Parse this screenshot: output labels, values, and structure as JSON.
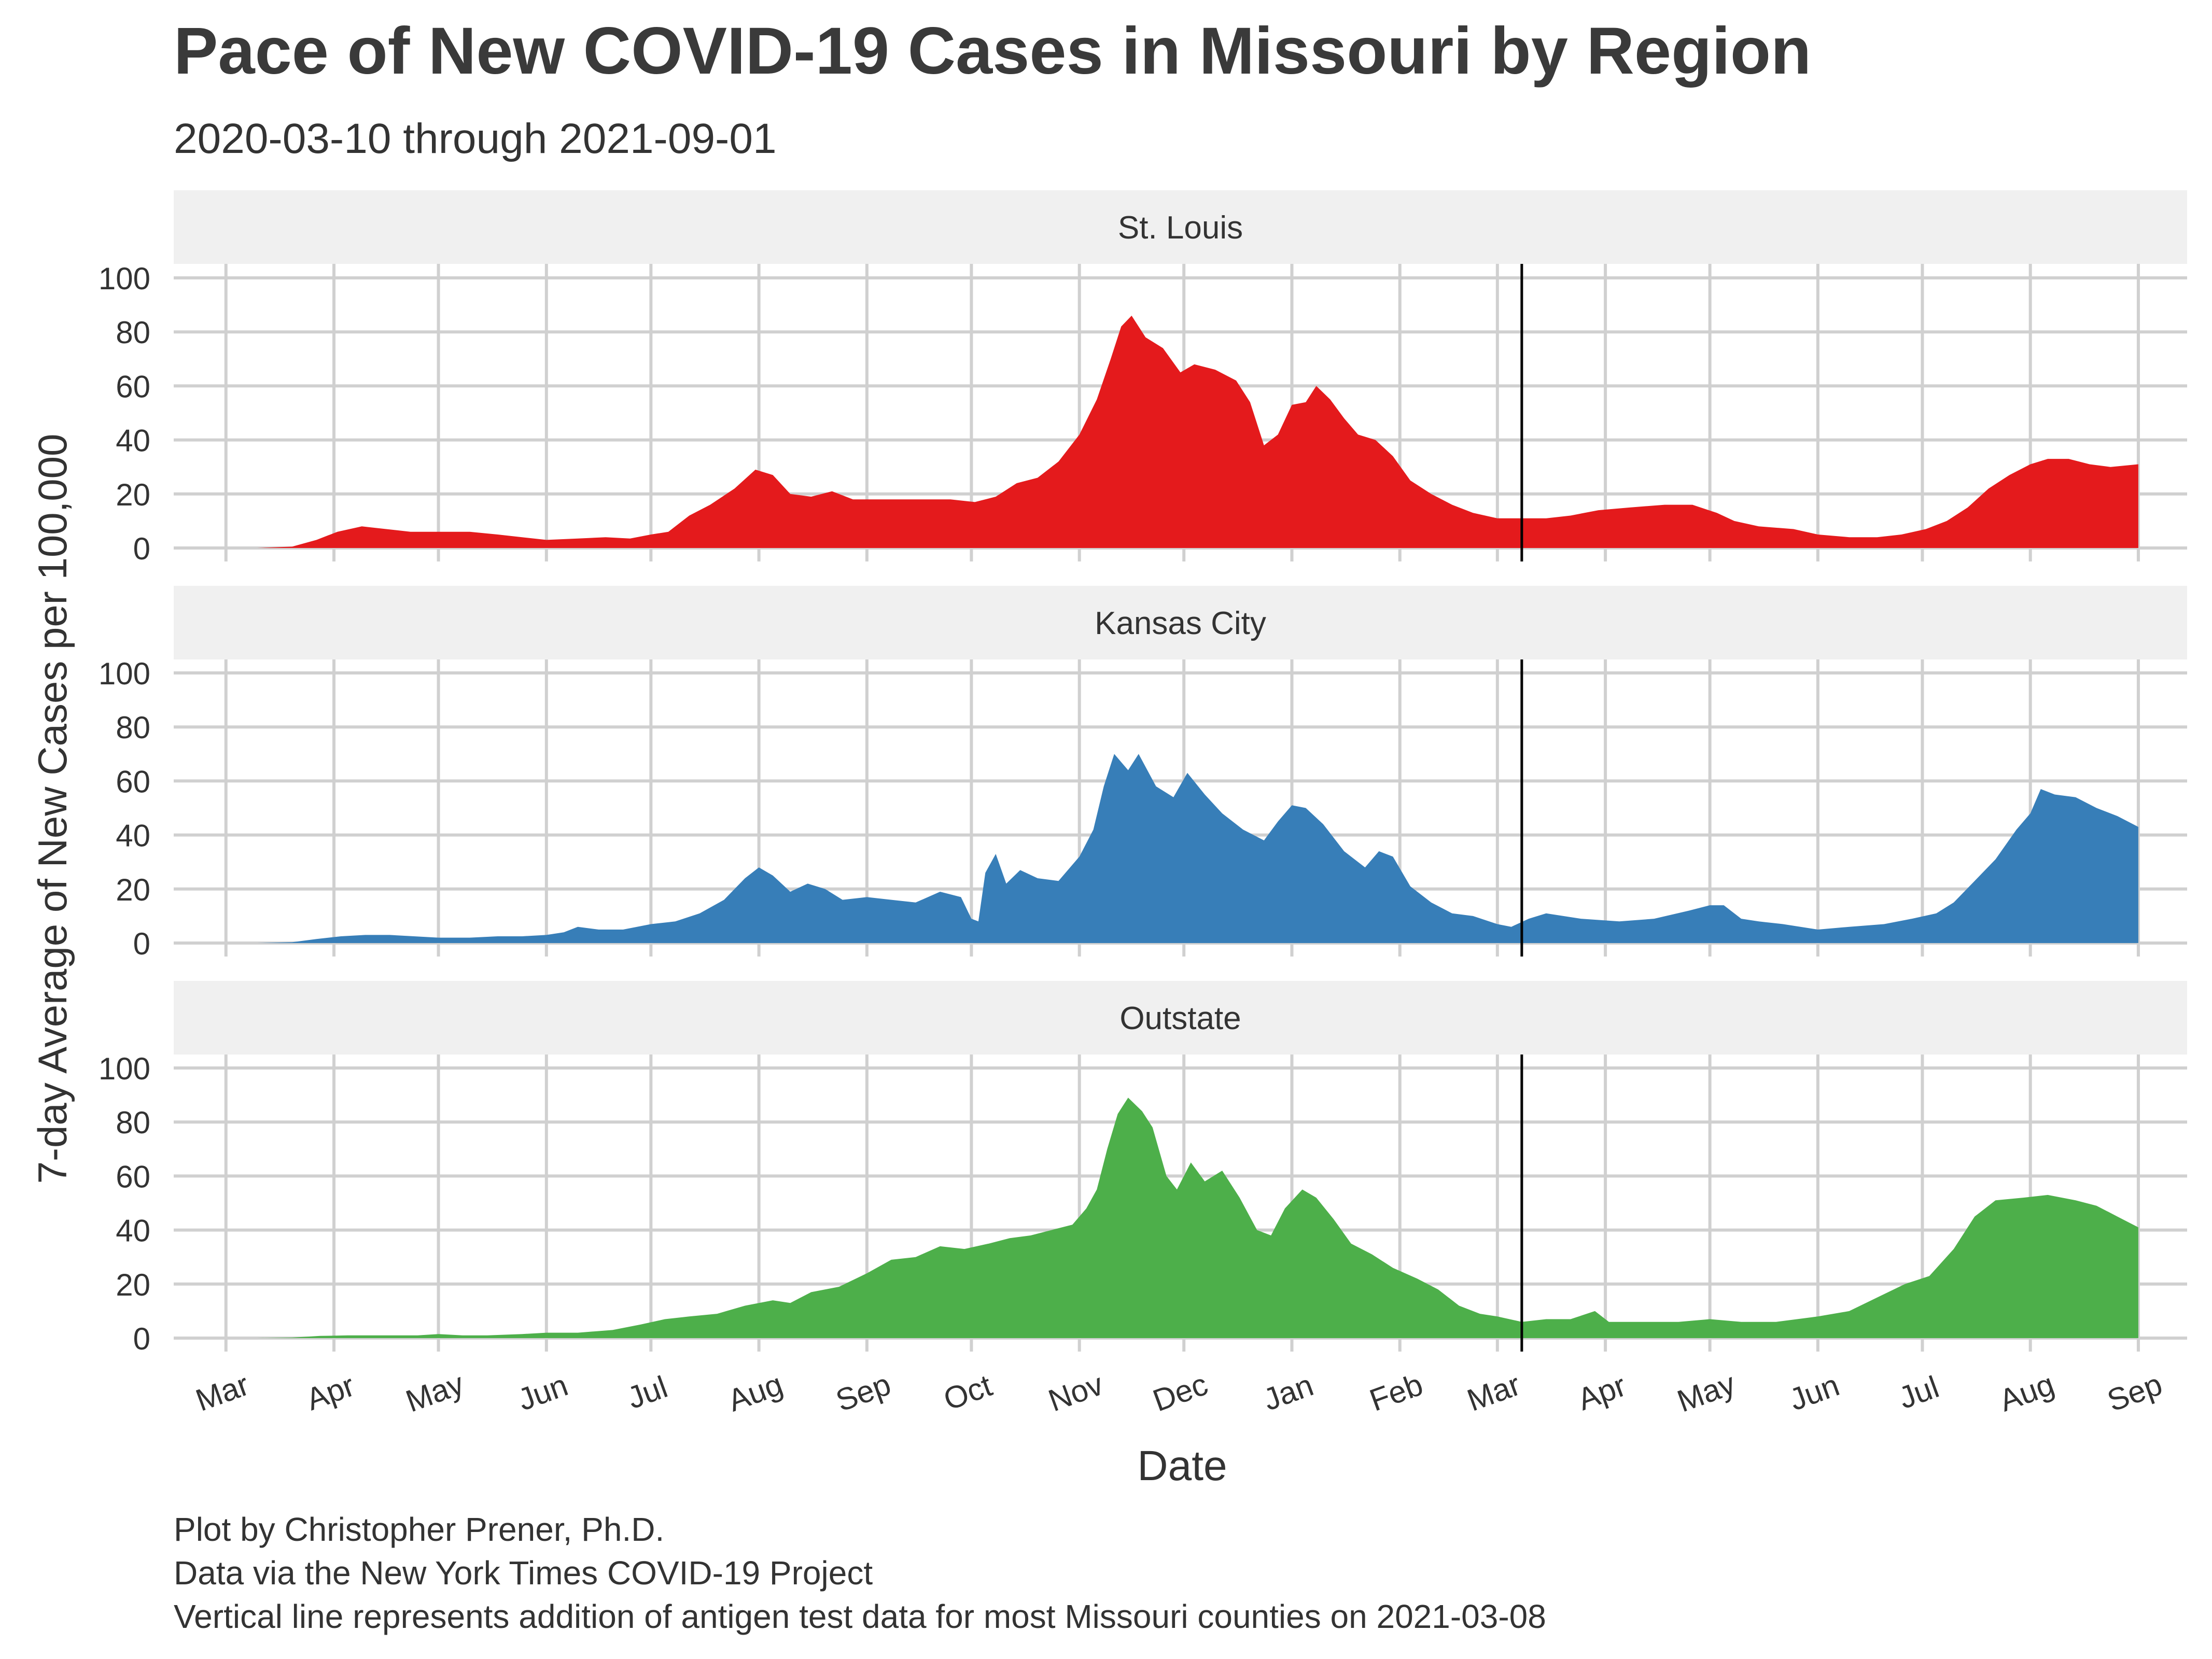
{
  "title": "Pace of New COVID-19 Cases in Missouri by Region",
  "subtitle": "2020-03-10 through 2021-09-01",
  "xlabel": "Date",
  "ylabel": "7-day Average of New Cases per 100,000",
  "caption": [
    "Plot by Christopher Prener, Ph.D.",
    "Data via the New York Times COVID-19 Project",
    "Vertical line represents addition of antigen test data for most Missouri counties on 2021-03-08"
  ],
  "chart_data": {
    "type": "area",
    "facets": [
      "St. Louis",
      "Kansas City",
      "Outstate"
    ],
    "x_range": [
      "2020-02-15",
      "2021-09-15"
    ],
    "y_range": [
      0,
      100
    ],
    "y_ticks": [
      0,
      20,
      40,
      60,
      80,
      100
    ],
    "x_ticks": [
      {
        "date": "2020-03-01",
        "label": "Mar"
      },
      {
        "date": "2020-04-01",
        "label": "Apr"
      },
      {
        "date": "2020-05-01",
        "label": "May"
      },
      {
        "date": "2020-06-01",
        "label": "Jun"
      },
      {
        "date": "2020-07-01",
        "label": "Jul"
      },
      {
        "date": "2020-08-01",
        "label": "Aug"
      },
      {
        "date": "2020-09-01",
        "label": "Sep"
      },
      {
        "date": "2020-10-01",
        "label": "Oct"
      },
      {
        "date": "2020-11-01",
        "label": "Nov"
      },
      {
        "date": "2020-12-01",
        "label": "Dec"
      },
      {
        "date": "2021-01-01",
        "label": "Jan"
      },
      {
        "date": "2021-02-01",
        "label": "Feb"
      },
      {
        "date": "2021-03-01",
        "label": "Mar"
      },
      {
        "date": "2021-04-01",
        "label": "Apr"
      },
      {
        "date": "2021-05-01",
        "label": "May"
      },
      {
        "date": "2021-06-01",
        "label": "Jun"
      },
      {
        "date": "2021-07-01",
        "label": "Jul"
      },
      {
        "date": "2021-08-01",
        "label": "Aug"
      },
      {
        "date": "2021-09-01",
        "label": "Sep"
      }
    ],
    "reference_line": "2021-03-08",
    "series": [
      {
        "name": "St. Louis",
        "color": "#e41a1c",
        "points": [
          [
            "2020-03-10",
            0
          ],
          [
            "2020-03-20",
            0.5
          ],
          [
            "2020-03-27",
            3
          ],
          [
            "2020-04-02",
            6
          ],
          [
            "2020-04-09",
            8
          ],
          [
            "2020-04-16",
            7
          ],
          [
            "2020-04-23",
            6
          ],
          [
            "2020-05-01",
            6
          ],
          [
            "2020-05-10",
            6
          ],
          [
            "2020-05-18",
            5
          ],
          [
            "2020-05-25",
            4
          ],
          [
            "2020-06-01",
            3
          ],
          [
            "2020-06-10",
            3.5
          ],
          [
            "2020-06-18",
            4
          ],
          [
            "2020-06-25",
            3.5
          ],
          [
            "2020-07-01",
            5
          ],
          [
            "2020-07-06",
            6
          ],
          [
            "2020-07-12",
            12
          ],
          [
            "2020-07-18",
            16
          ],
          [
            "2020-07-25",
            22
          ],
          [
            "2020-07-31",
            29
          ],
          [
            "2020-08-05",
            27
          ],
          [
            "2020-08-10",
            20
          ],
          [
            "2020-08-16",
            19
          ],
          [
            "2020-08-22",
            21
          ],
          [
            "2020-08-28",
            18
          ],
          [
            "2020-09-03",
            18
          ],
          [
            "2020-09-10",
            18
          ],
          [
            "2020-09-18",
            18
          ],
          [
            "2020-09-25",
            18
          ],
          [
            "2020-10-02",
            17
          ],
          [
            "2020-10-08",
            19
          ],
          [
            "2020-10-14",
            24
          ],
          [
            "2020-10-20",
            26
          ],
          [
            "2020-10-26",
            32
          ],
          [
            "2020-11-01",
            42
          ],
          [
            "2020-11-06",
            55
          ],
          [
            "2020-11-10",
            70
          ],
          [
            "2020-11-13",
            82
          ],
          [
            "2020-11-16",
            86
          ],
          [
            "2020-11-20",
            78
          ],
          [
            "2020-11-25",
            74
          ],
          [
            "2020-11-30",
            65
          ],
          [
            "2020-12-04",
            68
          ],
          [
            "2020-12-10",
            66
          ],
          [
            "2020-12-16",
            62
          ],
          [
            "2020-12-20",
            54
          ],
          [
            "2020-12-24",
            38
          ],
          [
            "2020-12-28",
            42
          ],
          [
            "2021-01-01",
            53
          ],
          [
            "2021-01-05",
            54
          ],
          [
            "2021-01-08",
            60
          ],
          [
            "2021-01-12",
            55
          ],
          [
            "2021-01-16",
            48
          ],
          [
            "2021-01-20",
            42
          ],
          [
            "2021-01-25",
            40
          ],
          [
            "2021-01-30",
            34
          ],
          [
            "2021-02-04",
            25
          ],
          [
            "2021-02-10",
            20
          ],
          [
            "2021-02-16",
            16
          ],
          [
            "2021-02-22",
            13
          ],
          [
            "2021-03-01",
            11
          ],
          [
            "2021-03-08",
            11
          ],
          [
            "2021-03-15",
            11
          ],
          [
            "2021-03-22",
            12
          ],
          [
            "2021-03-30",
            14
          ],
          [
            "2021-04-08",
            15
          ],
          [
            "2021-04-18",
            16
          ],
          [
            "2021-04-26",
            16
          ],
          [
            "2021-05-03",
            13
          ],
          [
            "2021-05-08",
            10
          ],
          [
            "2021-05-15",
            8
          ],
          [
            "2021-05-25",
            7
          ],
          [
            "2021-06-01",
            5
          ],
          [
            "2021-06-10",
            4
          ],
          [
            "2021-06-18",
            4
          ],
          [
            "2021-06-25",
            5
          ],
          [
            "2021-07-02",
            7
          ],
          [
            "2021-07-08",
            10
          ],
          [
            "2021-07-14",
            15
          ],
          [
            "2021-07-20",
            22
          ],
          [
            "2021-07-26",
            27
          ],
          [
            "2021-08-01",
            31
          ],
          [
            "2021-08-06",
            33
          ],
          [
            "2021-08-12",
            33
          ],
          [
            "2021-08-18",
            31
          ],
          [
            "2021-08-24",
            30
          ],
          [
            "2021-09-01",
            31
          ]
        ]
      },
      {
        "name": "Kansas City",
        "color": "#377eb8",
        "points": [
          [
            "2020-03-10",
            0
          ],
          [
            "2020-03-20",
            0.3
          ],
          [
            "2020-03-27",
            1.5
          ],
          [
            "2020-04-03",
            2.5
          ],
          [
            "2020-04-10",
            3
          ],
          [
            "2020-04-17",
            3
          ],
          [
            "2020-04-24",
            2.5
          ],
          [
            "2020-05-01",
            2
          ],
          [
            "2020-05-10",
            2
          ],
          [
            "2020-05-18",
            2.5
          ],
          [
            "2020-05-25",
            2.5
          ],
          [
            "2020-06-01",
            3
          ],
          [
            "2020-06-06",
            4
          ],
          [
            "2020-06-10",
            6
          ],
          [
            "2020-06-16",
            5
          ],
          [
            "2020-06-23",
            5
          ],
          [
            "2020-07-01",
            7
          ],
          [
            "2020-07-08",
            8
          ],
          [
            "2020-07-15",
            11
          ],
          [
            "2020-07-22",
            16
          ],
          [
            "2020-07-28",
            24
          ],
          [
            "2020-08-01",
            28
          ],
          [
            "2020-08-05",
            25
          ],
          [
            "2020-08-10",
            19
          ],
          [
            "2020-08-15",
            22
          ],
          [
            "2020-08-20",
            20
          ],
          [
            "2020-08-25",
            16
          ],
          [
            "2020-09-01",
            17
          ],
          [
            "2020-09-08",
            16
          ],
          [
            "2020-09-15",
            15
          ],
          [
            "2020-09-22",
            19
          ],
          [
            "2020-09-28",
            17
          ],
          [
            "2020-10-01",
            9
          ],
          [
            "2020-10-03",
            8
          ],
          [
            "2020-10-05",
            26
          ],
          [
            "2020-10-08",
            33
          ],
          [
            "2020-10-11",
            22
          ],
          [
            "2020-10-15",
            27
          ],
          [
            "2020-10-20",
            24
          ],
          [
            "2020-10-26",
            23
          ],
          [
            "2020-11-01",
            32
          ],
          [
            "2020-11-05",
            42
          ],
          [
            "2020-11-08",
            58
          ],
          [
            "2020-11-11",
            70
          ],
          [
            "2020-11-15",
            64
          ],
          [
            "2020-11-18",
            70
          ],
          [
            "2020-11-23",
            58
          ],
          [
            "2020-11-28",
            54
          ],
          [
            "2020-12-02",
            63
          ],
          [
            "2020-12-07",
            55
          ],
          [
            "2020-12-12",
            48
          ],
          [
            "2020-12-18",
            42
          ],
          [
            "2020-12-24",
            38
          ],
          [
            "2020-12-28",
            45
          ],
          [
            "2021-01-01",
            51
          ],
          [
            "2021-01-05",
            50
          ],
          [
            "2021-01-10",
            44
          ],
          [
            "2021-01-16",
            34
          ],
          [
            "2021-01-22",
            28
          ],
          [
            "2021-01-26",
            34
          ],
          [
            "2021-01-30",
            32
          ],
          [
            "2021-02-04",
            21
          ],
          [
            "2021-02-10",
            15
          ],
          [
            "2021-02-16",
            11
          ],
          [
            "2021-02-22",
            10
          ],
          [
            "2021-03-01",
            7
          ],
          [
            "2021-03-05",
            6
          ],
          [
            "2021-03-10",
            9
          ],
          [
            "2021-03-15",
            11
          ],
          [
            "2021-03-25",
            9
          ],
          [
            "2021-04-05",
            8
          ],
          [
            "2021-04-15",
            9
          ],
          [
            "2021-04-25",
            12
          ],
          [
            "2021-05-01",
            14
          ],
          [
            "2021-05-05",
            14
          ],
          [
            "2021-05-10",
            9
          ],
          [
            "2021-05-15",
            8
          ],
          [
            "2021-05-22",
            7
          ],
          [
            "2021-06-01",
            5
          ],
          [
            "2021-06-10",
            6
          ],
          [
            "2021-06-20",
            7
          ],
          [
            "2021-06-28",
            9
          ],
          [
            "2021-07-05",
            11
          ],
          [
            "2021-07-10",
            15
          ],
          [
            "2021-07-16",
            23
          ],
          [
            "2021-07-22",
            31
          ],
          [
            "2021-07-28",
            42
          ],
          [
            "2021-08-01",
            48
          ],
          [
            "2021-08-04",
            57
          ],
          [
            "2021-08-08",
            55
          ],
          [
            "2021-08-14",
            54
          ],
          [
            "2021-08-20",
            50
          ],
          [
            "2021-08-26",
            47
          ],
          [
            "2021-09-01",
            43
          ]
        ]
      },
      {
        "name": "Outstate",
        "color": "#4daf4a",
        "points": [
          [
            "2020-03-10",
            0
          ],
          [
            "2020-03-20",
            0.2
          ],
          [
            "2020-03-28",
            0.8
          ],
          [
            "2020-04-05",
            1
          ],
          [
            "2020-04-15",
            1
          ],
          [
            "2020-04-25",
            1
          ],
          [
            "2020-05-01",
            1.5
          ],
          [
            "2020-05-08",
            1
          ],
          [
            "2020-05-15",
            1
          ],
          [
            "2020-05-25",
            1.5
          ],
          [
            "2020-06-01",
            2
          ],
          [
            "2020-06-10",
            2
          ],
          [
            "2020-06-20",
            3
          ],
          [
            "2020-06-28",
            5
          ],
          [
            "2020-07-05",
            7
          ],
          [
            "2020-07-12",
            8
          ],
          [
            "2020-07-20",
            9
          ],
          [
            "2020-07-28",
            12
          ],
          [
            "2020-08-05",
            14
          ],
          [
            "2020-08-10",
            13
          ],
          [
            "2020-08-16",
            17
          ],
          [
            "2020-08-24",
            19
          ],
          [
            "2020-09-01",
            24
          ],
          [
            "2020-09-08",
            29
          ],
          [
            "2020-09-15",
            30
          ],
          [
            "2020-09-22",
            34
          ],
          [
            "2020-09-29",
            33
          ],
          [
            "2020-10-06",
            35
          ],
          [
            "2020-10-12",
            37
          ],
          [
            "2020-10-18",
            38
          ],
          [
            "2020-10-24",
            40
          ],
          [
            "2020-10-30",
            42
          ],
          [
            "2020-11-03",
            48
          ],
          [
            "2020-11-06",
            55
          ],
          [
            "2020-11-09",
            70
          ],
          [
            "2020-11-12",
            83
          ],
          [
            "2020-11-15",
            89
          ],
          [
            "2020-11-19",
            84
          ],
          [
            "2020-11-22",
            78
          ],
          [
            "2020-11-26",
            60
          ],
          [
            "2020-11-29",
            55
          ],
          [
            "2020-12-03",
            65
          ],
          [
            "2020-12-07",
            58
          ],
          [
            "2020-12-12",
            62
          ],
          [
            "2020-12-17",
            52
          ],
          [
            "2020-12-22",
            40
          ],
          [
            "2020-12-26",
            38
          ],
          [
            "2020-12-30",
            48
          ],
          [
            "2021-01-04",
            55
          ],
          [
            "2021-01-08",
            52
          ],
          [
            "2021-01-13",
            44
          ],
          [
            "2021-01-18",
            35
          ],
          [
            "2021-01-24",
            31
          ],
          [
            "2021-01-30",
            26
          ],
          [
            "2021-02-06",
            22
          ],
          [
            "2021-02-12",
            18
          ],
          [
            "2021-02-18",
            12
          ],
          [
            "2021-02-24",
            9
          ],
          [
            "2021-03-01",
            8
          ],
          [
            "2021-03-08",
            6
          ],
          [
            "2021-03-15",
            7
          ],
          [
            "2021-03-22",
            7
          ],
          [
            "2021-03-29",
            10
          ],
          [
            "2021-04-02",
            6
          ],
          [
            "2021-04-12",
            6
          ],
          [
            "2021-04-22",
            6
          ],
          [
            "2021-05-01",
            7
          ],
          [
            "2021-05-10",
            6
          ],
          [
            "2021-05-20",
            6
          ],
          [
            "2021-06-01",
            8
          ],
          [
            "2021-06-10",
            10
          ],
          [
            "2021-06-18",
            15
          ],
          [
            "2021-06-26",
            20
          ],
          [
            "2021-07-03",
            23
          ],
          [
            "2021-07-10",
            33
          ],
          [
            "2021-07-16",
            45
          ],
          [
            "2021-07-22",
            51
          ],
          [
            "2021-07-30",
            52
          ],
          [
            "2021-08-06",
            53
          ],
          [
            "2021-08-14",
            51
          ],
          [
            "2021-08-20",
            49
          ],
          [
            "2021-08-26",
            45
          ],
          [
            "2021-09-01",
            41
          ]
        ]
      }
    ],
    "grid": true,
    "legend": "none"
  }
}
